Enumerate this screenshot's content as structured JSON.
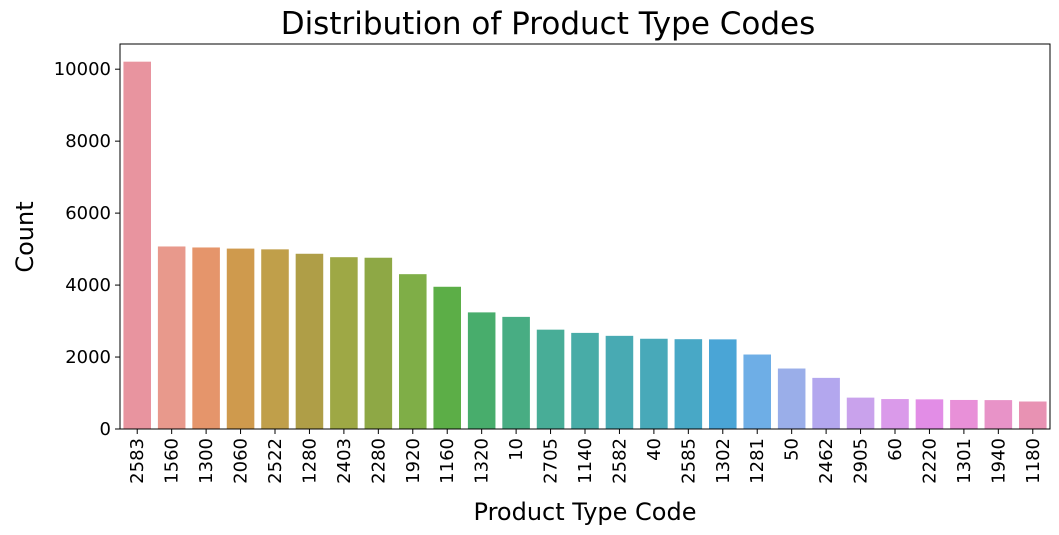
{
  "chart_data": {
    "type": "bar",
    "title": "Distribution of Product Type Codes",
    "xlabel": "Product Type Code",
    "ylabel": "Count",
    "ylim": [
      0,
      10700
    ],
    "yticks": [
      "0",
      "2000",
      "4000",
      "6000",
      "8000",
      "10000"
    ],
    "ytick_values": [
      0,
      2000,
      4000,
      6000,
      8000,
      10000
    ],
    "grid": false,
    "categories": [
      "2583",
      "1560",
      "1300",
      "2060",
      "2522",
      "1280",
      "2403",
      "2280",
      "1920",
      "1160",
      "1320",
      "10",
      "2705",
      "1140",
      "2582",
      "40",
      "2585",
      "1302",
      "1281",
      "50",
      "2462",
      "2905",
      "60",
      "2220",
      "1301",
      "1940",
      "1180"
    ],
    "values": [
      10209,
      5073,
      5045,
      5014,
      4993,
      4870,
      4775,
      4760,
      4303,
      3953,
      3241,
      3116,
      2761,
      2671,
      2589,
      2508,
      2496,
      2491,
      2070,
      1681,
      1421,
      872,
      832,
      824,
      807,
      803,
      764
    ],
    "colors": [
      "#e8949f",
      "#e8998c",
      "#e5956b",
      "#cf9a4d",
      "#c09f4a",
      "#af9e47",
      "#9ea845",
      "#8ea845",
      "#7fae47",
      "#5cae47",
      "#48ad6c",
      "#48ad83",
      "#48ad97",
      "#48aca7",
      "#48aab3",
      "#48a9b9",
      "#48a8c6",
      "#4aa5d6",
      "#6eaee6",
      "#9aaee9",
      "#b3a7ee",
      "#c9a2ec",
      "#da9aea",
      "#e28de6",
      "#e890d8",
      "#e893c8",
      "#e892b3"
    ]
  }
}
